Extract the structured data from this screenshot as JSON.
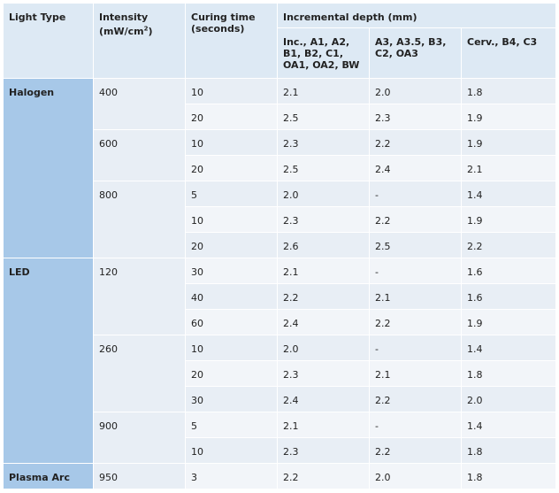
{
  "headers": {
    "light_type": "Light Type",
    "intensity": "Intensity (mW/cm²)",
    "curing_time": "Curing time (seconds)",
    "incremental_depth": "Incremental depth (mm)",
    "depth_col1": "Inc., A1, A2, B1, B2, C1, OA1, OA2, BW",
    "depth_col2": "A3, A3.5, B3, C2, OA3",
    "depth_col3": "Cerv., B4, C3"
  },
  "groups": [
    {
      "light_type": "Halogen",
      "intensities": [
        {
          "intensity": "400",
          "rows": [
            {
              "time": "10",
              "d1": "2.1",
              "d2": "2.0",
              "d3": "1.8"
            },
            {
              "time": "20",
              "d1": "2.5",
              "d2": "2.3",
              "d3": "1.9"
            }
          ]
        },
        {
          "intensity": "600",
          "rows": [
            {
              "time": "10",
              "d1": "2.3",
              "d2": "2.2",
              "d3": "1.9"
            },
            {
              "time": "20",
              "d1": "2.5",
              "d2": "2.4",
              "d3": "2.1"
            }
          ]
        },
        {
          "intensity": "800",
          "rows": [
            {
              "time": "5",
              "d1": "2.0",
              "d2": "-",
              "d3": "1.4"
            },
            {
              "time": "10",
              "d1": "2.3",
              "d2": "2.2",
              "d3": "1.9"
            },
            {
              "time": "20",
              "d1": "2.6",
              "d2": "2.5",
              "d3": "2.2"
            }
          ]
        }
      ]
    },
    {
      "light_type": "LED",
      "intensities": [
        {
          "intensity": "120",
          "rows": [
            {
              "time": "30",
              "d1": "2.1",
              "d2": "-",
              "d3": "1.6"
            },
            {
              "time": "40",
              "d1": "2.2",
              "d2": "2.1",
              "d3": "1.6"
            },
            {
              "time": "60",
              "d1": "2.4",
              "d2": "2.2",
              "d3": "1.9"
            }
          ]
        },
        {
          "intensity": "260",
          "rows": [
            {
              "time": "10",
              "d1": "2.0",
              "d2": "-",
              "d3": "1.4"
            },
            {
              "time": "20",
              "d1": "2.3",
              "d2": "2.1",
              "d3": "1.8"
            },
            {
              "time": "30",
              "d1": "2.4",
              "d2": "2.2",
              "d3": "2.0"
            }
          ]
        },
        {
          "intensity": "900",
          "rows": [
            {
              "time": "5",
              "d1": "2.1",
              "d2": "-",
              "d3": "1.4"
            },
            {
              "time": "10",
              "d1": "2.3",
              "d2": "2.2",
              "d3": "1.8"
            }
          ]
        }
      ]
    },
    {
      "light_type": "Plasma Arc",
      "intensities": [
        {
          "intensity": "950",
          "rows": [
            {
              "time": "3",
              "d1": "2.2",
              "d2": "2.0",
              "d3": "1.8"
            }
          ]
        }
      ]
    }
  ]
}
